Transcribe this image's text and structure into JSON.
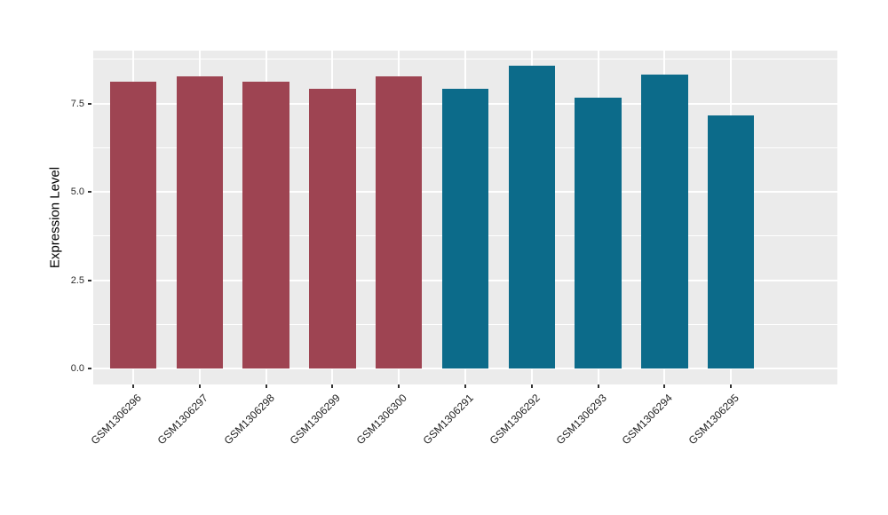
{
  "figure": {
    "background": "#FFFFFF",
    "panel_background": "#EBEBEB",
    "grid_color": "#FFFFFF",
    "tick_color": "#333333"
  },
  "chart_data": {
    "type": "bar",
    "title": "",
    "xlabel": "",
    "ylabel": "Expression Level",
    "categories": [
      "GSM1306296",
      "GSM1306297",
      "GSM1306298",
      "GSM1306299",
      "GSM1306300",
      "GSM1306291",
      "GSM1306292",
      "GSM1306293",
      "GSM1306294",
      "GSM1306295"
    ],
    "values": [
      8.13,
      8.27,
      8.11,
      7.93,
      8.27,
      7.92,
      8.58,
      7.67,
      8.33,
      7.17
    ],
    "bar_colors": [
      "#9E4452",
      "#9E4452",
      "#9E4452",
      "#9E4452",
      "#9E4452",
      "#0C6B8A",
      "#0C6B8A",
      "#0C6B8A",
      "#0C6B8A",
      "#0C6B8A"
    ],
    "ylim": [
      -0.45,
      9.0
    ],
    "yticks": [
      0.0,
      2.5,
      5.0,
      7.5
    ],
    "ytick_labels": [
      "0.0",
      "2.5",
      "5.0",
      "7.5"
    ],
    "minor_yticks": [
      1.25,
      3.75,
      6.25,
      8.75
    ],
    "bar_width_ratio": 0.7,
    "x_label_rotation": -45,
    "grid": true,
    "legend": "none"
  }
}
